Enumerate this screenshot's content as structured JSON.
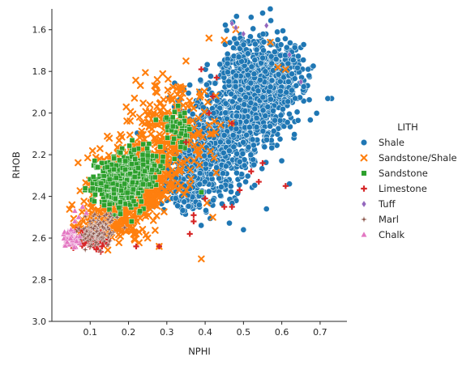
{
  "chart_data": {
    "type": "scatter",
    "xlabel": "NPHI",
    "ylabel": "RHOB",
    "xlim": [
      0.0,
      0.77
    ],
    "ylim": [
      3.0,
      1.5
    ],
    "y_inverted": true,
    "x_ticks": [
      0.1,
      0.2,
      0.3,
      0.4,
      0.5,
      0.6,
      0.7
    ],
    "y_ticks": [
      1.6,
      1.8,
      2.0,
      2.2,
      2.4,
      2.6,
      2.8,
      3.0
    ],
    "x_tick_labels": [
      "0.1",
      "0.2",
      "0.3",
      "0.4",
      "0.5",
      "0.6",
      "0.7"
    ],
    "y_tick_labels": [
      "1.6",
      "1.8",
      "2.0",
      "2.2",
      "2.4",
      "2.6",
      "2.8",
      "3.0"
    ],
    "grid": false,
    "legend": {
      "title": "LITH",
      "placement": "right",
      "entries": [
        "Shale",
        "Sandstone/Shale",
        "Sandstone",
        "Limestone",
        "Tuff",
        "Marl",
        "Chalk"
      ]
    },
    "series": [
      {
        "name": "Shale",
        "marker": "circle",
        "color": "#1f77b4",
        "clusters": [
          {
            "cx": 0.53,
            "cy": 1.9,
            "sx": 0.05,
            "sy": 0.13,
            "n": 900
          },
          {
            "cx": 0.43,
            "cy": 2.13,
            "sx": 0.05,
            "sy": 0.12,
            "n": 500
          },
          {
            "cx": 0.36,
            "cy": 2.32,
            "sx": 0.035,
            "sy": 0.08,
            "n": 280
          },
          {
            "cx": 0.6,
            "cy": 1.83,
            "sx": 0.035,
            "sy": 0.1,
            "n": 180
          }
        ],
        "points": [
          [
            0.73,
            1.93
          ],
          [
            0.72,
            1.93
          ],
          [
            0.55,
            1.52
          ],
          [
            0.52,
            1.54
          ],
          [
            0.57,
            1.5
          ],
          [
            0.5,
            2.56
          ],
          [
            0.56,
            2.46
          ],
          [
            0.3,
            2.42
          ],
          [
            0.17,
            2.29
          ],
          [
            0.15,
            2.56
          ],
          [
            0.62,
            2.34
          ]
        ]
      },
      {
        "name": "Sandstone/Shale",
        "marker": "x",
        "color": "#ff7f0e",
        "clusters": [
          {
            "cx": 0.22,
            "cy": 2.33,
            "sx": 0.05,
            "sy": 0.09,
            "n": 450
          },
          {
            "cx": 0.31,
            "cy": 2.1,
            "sx": 0.05,
            "sy": 0.12,
            "n": 260
          },
          {
            "cx": 0.14,
            "cy": 2.52,
            "sx": 0.04,
            "sy": 0.05,
            "n": 200
          }
        ],
        "points": [
          [
            0.35,
            1.75
          ],
          [
            0.41,
            1.64
          ],
          [
            0.45,
            1.65
          ],
          [
            0.48,
            1.6
          ],
          [
            0.57,
            1.66
          ],
          [
            0.59,
            1.78
          ],
          [
            0.61,
            1.79
          ],
          [
            0.25,
            2.6
          ],
          [
            0.22,
            2.58
          ],
          [
            0.28,
            2.64
          ],
          [
            0.42,
            2.5
          ],
          [
            0.39,
            2.7
          ]
        ]
      },
      {
        "name": "Sandstone",
        "marker": "square",
        "color": "#2ca02c",
        "clusters": [
          {
            "cx": 0.17,
            "cy": 2.34,
            "sx": 0.03,
            "sy": 0.06,
            "n": 320
          },
          {
            "cx": 0.23,
            "cy": 2.27,
            "sx": 0.025,
            "sy": 0.05,
            "n": 160
          },
          {
            "cx": 0.33,
            "cy": 2.07,
            "sx": 0.02,
            "sy": 0.04,
            "n": 50
          }
        ],
        "points": [
          [
            0.13,
            2.24
          ],
          [
            0.12,
            2.26
          ],
          [
            0.39,
            2.38
          ],
          [
            0.32,
            2.22
          ],
          [
            0.29,
            2.21
          ]
        ]
      },
      {
        "name": "Limestone",
        "marker": "plus",
        "color": "#d62728",
        "clusters": [
          {
            "cx": 0.1,
            "cy": 2.6,
            "sx": 0.025,
            "sy": 0.025,
            "n": 70
          }
        ],
        "points": [
          [
            0.22,
            2.64
          ],
          [
            0.28,
            2.64
          ],
          [
            0.37,
            2.52
          ],
          [
            0.36,
            2.58
          ],
          [
            0.4,
            2.41
          ],
          [
            0.45,
            2.45
          ],
          [
            0.47,
            2.45
          ],
          [
            0.49,
            2.37
          ],
          [
            0.52,
            2.28
          ],
          [
            0.54,
            2.33
          ],
          [
            0.55,
            2.24
          ],
          [
            0.61,
            2.35
          ],
          [
            0.39,
            1.79
          ],
          [
            0.43,
            1.83
          ],
          [
            0.42,
            1.92
          ],
          [
            0.35,
            2.14
          ],
          [
            0.47,
            2.05
          ],
          [
            0.37,
            2.49
          ],
          [
            0.41,
            2.0
          ]
        ]
      },
      {
        "name": "Tuff",
        "marker": "diamond",
        "color": "#9467bd",
        "clusters": [],
        "points": [
          [
            0.47,
            1.57
          ],
          [
            0.48,
            1.59
          ],
          [
            0.56,
            1.58
          ],
          [
            0.62,
            1.72
          ],
          [
            0.65,
            1.85
          ],
          [
            0.5,
            1.62
          ]
        ]
      },
      {
        "name": "Marl",
        "marker": "star",
        "color": "#8c564b",
        "clusters": [
          {
            "cx": 0.12,
            "cy": 2.57,
            "sx": 0.025,
            "sy": 0.035,
            "n": 120
          }
        ],
        "points": [
          [
            0.15,
            2.58
          ],
          [
            0.17,
            2.5
          ],
          [
            0.19,
            2.55
          ]
        ]
      },
      {
        "name": "Chalk",
        "marker": "triangle",
        "color": "#e377c2",
        "clusters": [
          {
            "cx": 0.05,
            "cy": 2.6,
            "sx": 0.01,
            "sy": 0.02,
            "n": 60
          }
        ],
        "points": [
          [
            0.06,
            2.47
          ],
          [
            0.07,
            2.5
          ],
          [
            0.08,
            2.45
          ],
          [
            0.09,
            2.48
          ],
          [
            0.04,
            2.62
          ],
          [
            0.05,
            2.56
          ],
          [
            0.06,
            2.52
          ]
        ]
      }
    ]
  }
}
